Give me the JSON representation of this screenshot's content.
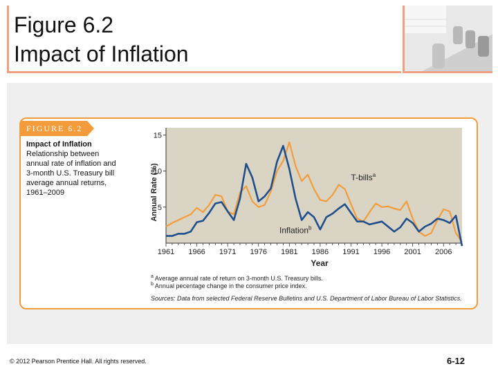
{
  "slide": {
    "title_line1": "Figure 6.2",
    "title_line2": "Impact of Inflation",
    "footer": "© 2012 Pearson Prentice Hall. All rights reserved.",
    "slide_number": "6-12"
  },
  "figure": {
    "tab_label": "FIGURE 6.2",
    "subtitle_lines": [
      "Impact of Inflation",
      "Relationship between",
      "annual rate of inflation and",
      "3-month U.S. Treasury bill",
      "average annual returns,",
      "1961–2009"
    ],
    "note_a": "Average annual rate of return on 3-month U.S. Treasury bills.",
    "note_b": "Annual pecentage change in the consumer price index.",
    "sources": "Sources: Data from selected Federal Reserve Bulletins and U.S. Department of Labor Bureau of Labor Statistics."
  },
  "chart_data": {
    "type": "line",
    "xlabel": "Year",
    "ylabel": "Annual Rate (%)",
    "x_ticks": [
      "1961",
      "1966",
      "1971",
      "1976",
      "1981",
      "1986",
      "1991",
      "1996",
      "2001",
      "2006"
    ],
    "y_ticks": [
      5,
      10,
      15
    ],
    "xlim": [
      1961,
      2009
    ],
    "ylim": [
      0,
      16
    ],
    "x": [
      1961,
      1962,
      1963,
      1964,
      1965,
      1966,
      1967,
      1968,
      1969,
      1970,
      1971,
      1972,
      1973,
      1974,
      1975,
      1976,
      1977,
      1978,
      1979,
      1980,
      1981,
      1982,
      1983,
      1984,
      1985,
      1986,
      1987,
      1988,
      1989,
      1990,
      1991,
      1992,
      1993,
      1994,
      1995,
      1996,
      1997,
      1998,
      1999,
      2000,
      2001,
      2002,
      2003,
      2004,
      2005,
      2006,
      2007,
      2008,
      2009
    ],
    "series": [
      {
        "name": "T-bills",
        "color": "#f39c3c",
        "values": [
          2.3,
          2.8,
          3.2,
          3.6,
          4.0,
          4.9,
          4.3,
          5.3,
          6.7,
          6.5,
          4.4,
          4.0,
          7.0,
          7.9,
          5.8,
          5.0,
          5.3,
          7.2,
          10.0,
          11.4,
          14.0,
          10.7,
          8.6,
          9.5,
          7.5,
          6.0,
          5.8,
          6.7,
          8.1,
          7.5,
          5.4,
          3.4,
          3.0,
          4.3,
          5.5,
          5.0,
          5.1,
          4.8,
          4.6,
          5.8,
          3.4,
          1.6,
          1.0,
          1.4,
          3.2,
          4.7,
          4.4,
          1.4,
          0.15
        ]
      },
      {
        "name": "Inflation",
        "color": "#1f4e8c",
        "values": [
          1.0,
          1.0,
          1.3,
          1.3,
          1.6,
          2.9,
          3.1,
          4.2,
          5.5,
          5.7,
          4.4,
          3.2,
          6.2,
          11.0,
          9.1,
          5.8,
          6.5,
          7.6,
          11.3,
          13.5,
          10.3,
          6.2,
          3.2,
          4.3,
          3.6,
          1.9,
          3.6,
          4.1,
          4.8,
          5.4,
          4.2,
          3.0,
          3.0,
          2.6,
          2.8,
          3.0,
          2.3,
          1.6,
          2.2,
          3.4,
          2.8,
          1.6,
          2.3,
          2.7,
          3.4,
          3.2,
          2.8,
          3.8,
          -0.4
        ]
      }
    ],
    "annotations": [
      {
        "text": "T-bills",
        "superscript": "a",
        "x": 1993,
        "y": 8.7
      },
      {
        "text": "Inflation",
        "superscript": "b",
        "x": 1982,
        "y": 1.4
      }
    ],
    "plot_background": "#d9d4c3",
    "grid": false
  }
}
